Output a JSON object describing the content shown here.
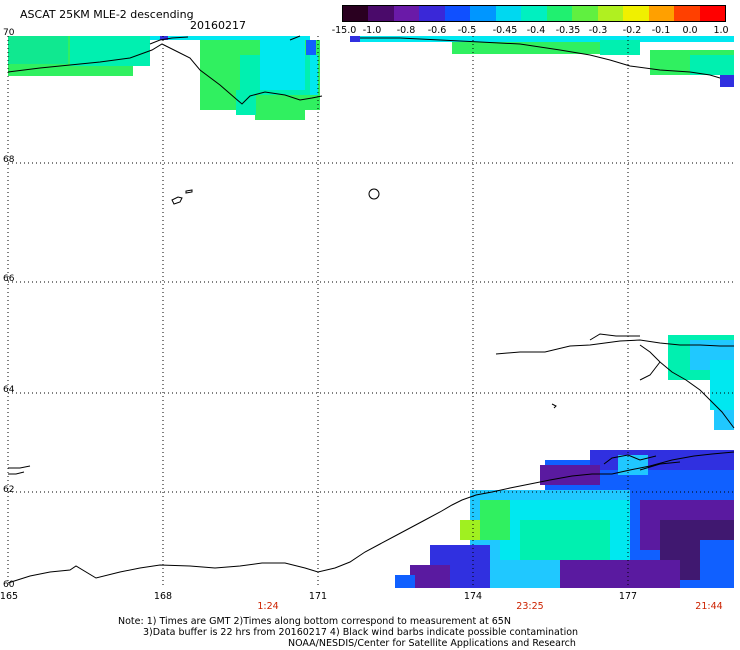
{
  "header": {
    "title": "ASCAT 25KM MLE-2 descending",
    "date": "20160217"
  },
  "colorbar": {
    "labels": [
      "-15.0",
      "-1.0",
      "-0.8",
      "-0.6",
      "-0.5",
      "-0.45",
      "-0.4",
      "-0.35",
      "-0.3",
      "-0.2",
      "-0.1",
      "0.0",
      "1.0"
    ],
    "colors": [
      "#2a0020",
      "#4a0a6a",
      "#6a1aa8",
      "#3a28d8",
      "#1050ff",
      "#0096ff",
      "#00d8f0",
      "#00f0c0",
      "#20f070",
      "#60f040",
      "#b0f020",
      "#f0f000",
      "#ffa000",
      "#ff4000",
      "#ff0000"
    ]
  },
  "axes": {
    "lat_labels": [
      "70",
      "68",
      "66",
      "64",
      "62",
      "60"
    ],
    "lon_labels": [
      "165",
      "168",
      "171",
      "174",
      "177"
    ],
    "time_labels": [
      "1:24",
      "23:25",
      "21:44"
    ]
  },
  "notes": {
    "line1": "Note: 1) Times are GMT 2)Times along bottom correspond to measurement at 65N",
    "line2": "3)Data buffer is 22 hrs from 20160217 4) Black wind barbs indicate possible contamination",
    "line3": "NOAA/NESDIS/Center for Satellite Applications and Research"
  }
}
